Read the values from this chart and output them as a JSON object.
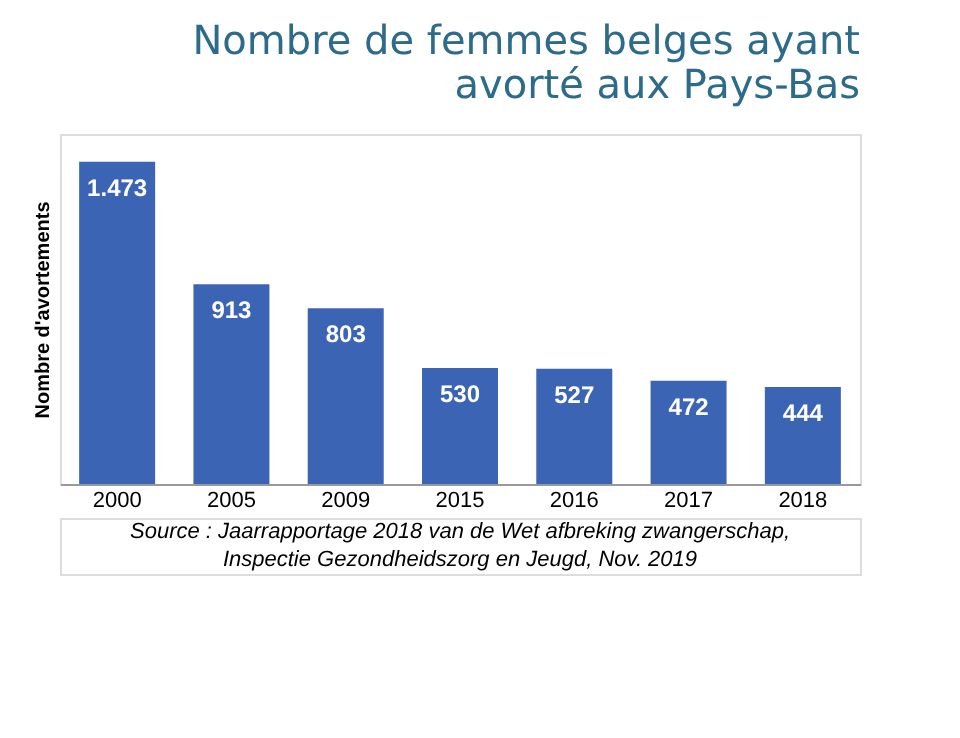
{
  "chart_data": {
    "type": "bar",
    "title": "Nombre de femmes belges ayant avorté aux Pays-Bas",
    "ylabel": "Nombre d'avortements",
    "categories": [
      "2000",
      "2005",
      "2009",
      "2015",
      "2016",
      "2017",
      "2018"
    ],
    "values": [
      1473,
      913,
      803,
      530,
      527,
      472,
      444
    ],
    "value_labels": [
      "1.473",
      "913",
      "803",
      "530",
      "527",
      "472",
      "444"
    ],
    "color": "#3b64b5",
    "grid": false,
    "annotations": [
      "Source : Jaarrapportage 2018 van de Wet afbreking zwangerschap,",
      "Inspectie Gezondheidszorg en Jeugd, Nov. 2019"
    ]
  }
}
